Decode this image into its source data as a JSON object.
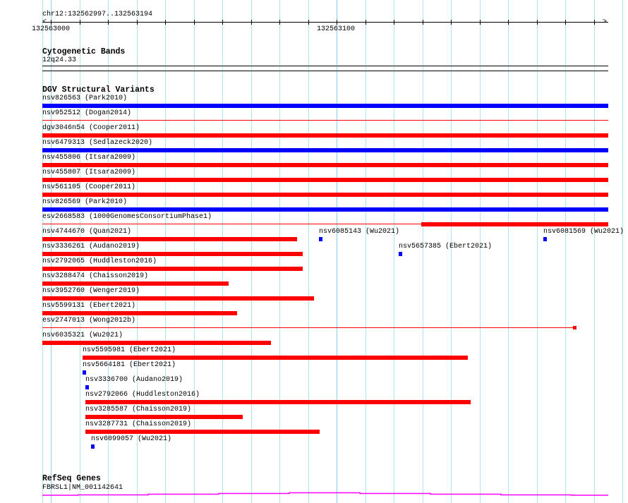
{
  "ruler": {
    "range": "chr12:132562997..132563194",
    "tick_labels": [
      "132563000",
      "132563100"
    ]
  },
  "tracks": {
    "cytoband": {
      "title": "Cytogenetic Bands",
      "band": "12q24.33"
    },
    "dgv": {
      "title": "DGV Structural Variants",
      "colors": {
        "gain": "#0000ff",
        "loss": "#ff0000"
      },
      "features": [
        {
          "label": "nsv826563 (Park2010)",
          "type": "gain"
        },
        {
          "label": "nsv952512 (Dogan2014)",
          "type": "loss"
        },
        {
          "label": "dgv3046n54 (Cooper2011)",
          "type": "loss"
        },
        {
          "label": "nsv6479313 (Sedlazeck2020)",
          "type": "gain"
        },
        {
          "label": "nsv455806 (Itsara2009)",
          "type": "loss"
        },
        {
          "label": "nsv455807 (Itsara2009)",
          "type": "loss"
        },
        {
          "label": "nsv561105 (Cooper2011)",
          "type": "loss"
        },
        {
          "label": "nsv826569 (Park2010)",
          "type": "gain"
        },
        {
          "label": "esv2668583 (1000GenomesConsortiumPhase1)",
          "type": "loss"
        },
        {
          "label": "nsv4744670 (Quan2021)",
          "type": "loss"
        },
        {
          "label": "nsv6085143 (Wu2021)",
          "type": "gain"
        },
        {
          "label": "nsv6081569 (Wu2021)",
          "type": "gain"
        },
        {
          "label": "nsv3336261 (Audano2019)",
          "type": "loss"
        },
        {
          "label": "nsv5657385 (Ebert2021)",
          "type": "gain"
        },
        {
          "label": "nsv2792065 (Huddleston2016)",
          "type": "loss"
        },
        {
          "label": "nsv3288474 (Chaisson2019)",
          "type": "loss"
        },
        {
          "label": "nsv3952760 (Wenger2019)",
          "type": "loss"
        },
        {
          "label": "nsv5599131 (Ebert2021)",
          "type": "loss"
        },
        {
          "label": "esv2747013 (Wong2012b)",
          "type": "loss"
        },
        {
          "label": "nsv6035321 (Wu2021)",
          "type": "loss"
        },
        {
          "label": "nsv5595981 (Ebert2021)",
          "type": "loss"
        },
        {
          "label": "nsv5664181 (Ebert2021)",
          "type": "gain"
        },
        {
          "label": "nsv3336700 (Audano2019)",
          "type": "gain"
        },
        {
          "label": "nsv2792066 (Huddleston2016)",
          "type": "loss"
        },
        {
          "label": "nsv3285587 (Chaisson2019)",
          "type": "loss"
        },
        {
          "label": "nsv3287731 (Chaisson2019)",
          "type": "loss"
        },
        {
          "label": "nsv6099057 (Wu2021)",
          "type": "gain"
        }
      ]
    },
    "refseq": {
      "title": "RefSeq Genes",
      "gene": "FBRSL1|NM_001142641",
      "color": "#ff00ff"
    }
  }
}
